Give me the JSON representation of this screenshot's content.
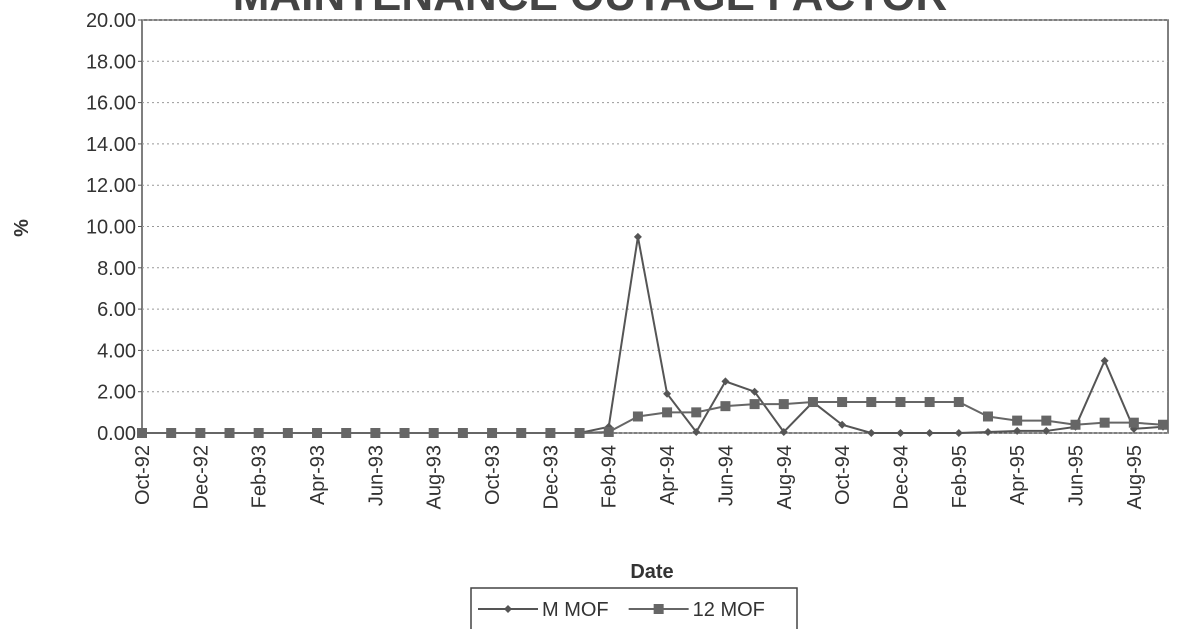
{
  "chart_data": {
    "type": "line",
    "title": "MAINTENANCE OUTAGE FACTOR",
    "x_label": "Date",
    "y_label": "%",
    "categories": [
      "Oct-92",
      null,
      "Dec-92",
      null,
      "Feb-93",
      null,
      "Apr-93",
      null,
      "Jun-93",
      null,
      "Aug-93",
      null,
      "Oct-93",
      null,
      "Dec-93",
      null,
      "Feb-94",
      null,
      "Apr-94",
      null,
      "Jun-94",
      null,
      "Aug-94",
      null,
      "Oct-94",
      null,
      "Dec-94",
      null,
      "Feb-95",
      null,
      "Apr-95",
      null,
      "Jun-95",
      null,
      "Aug-95",
      null
    ],
    "series": [
      {
        "name": "M MOF",
        "color": "#555555",
        "marker": "diamond",
        "values": [
          0,
          0,
          0,
          0,
          0,
          0,
          0,
          0,
          0,
          0,
          0,
          0,
          0,
          0,
          0,
          0,
          0.3,
          9.5,
          1.9,
          0.05,
          2.5,
          2.0,
          0.05,
          1.5,
          0.4,
          0,
          0,
          0,
          0,
          0.05,
          0.1,
          0.1,
          0.3,
          3.5,
          0.2,
          0.3
        ]
      },
      {
        "name": "12 MOF",
        "color": "#666666",
        "marker": "square",
        "values": [
          0,
          0,
          0,
          0,
          0,
          0,
          0,
          0,
          0,
          0,
          0,
          0,
          0,
          0,
          0,
          0,
          0.05,
          0.8,
          1.0,
          1.0,
          1.3,
          1.4,
          1.4,
          1.5,
          1.5,
          1.5,
          1.5,
          1.5,
          1.5,
          0.8,
          0.6,
          0.6,
          0.4,
          0.5,
          0.5,
          0.4
        ]
      }
    ],
    "ylim": [
      0,
      20
    ],
    "yticks": [
      {
        "value": 0,
        "label": "0.00"
      },
      {
        "value": 2,
        "label": "2.00"
      },
      {
        "value": 4,
        "label": "4.00"
      },
      {
        "value": 6,
        "label": "6.00"
      },
      {
        "value": 8,
        "label": "8.00"
      },
      {
        "value": 10,
        "label": "10.00"
      },
      {
        "value": 12,
        "label": "12.00"
      },
      {
        "value": 14,
        "label": "14.00"
      },
      {
        "value": 16,
        "label": "16.00"
      },
      {
        "value": 18,
        "label": "18.00"
      },
      {
        "value": 20,
        "label": "20.00"
      }
    ],
    "grid": true,
    "legend": "bottom"
  }
}
